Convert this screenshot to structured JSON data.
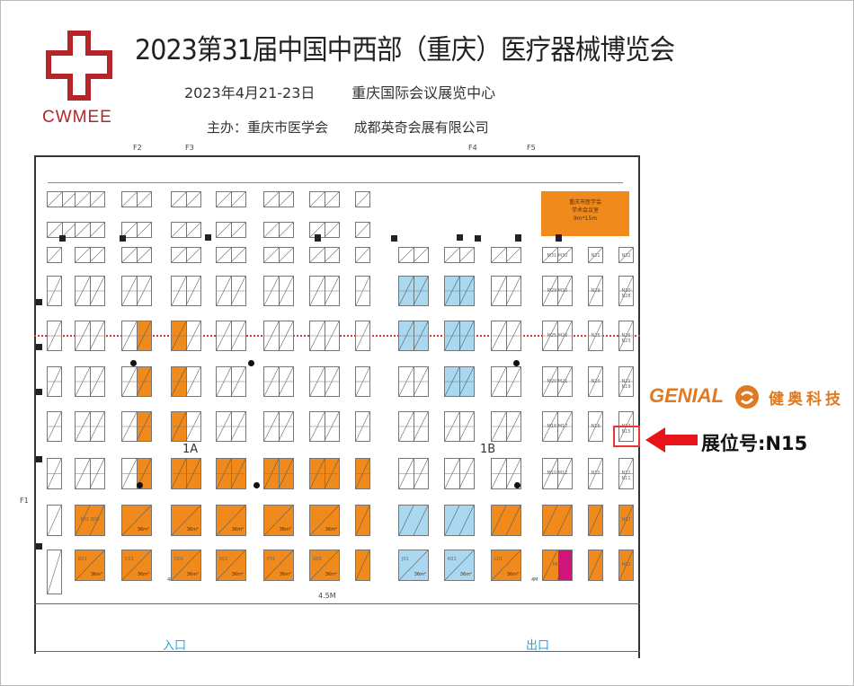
{
  "header": {
    "title": "2023第31届中国中西部（重庆）医疗器械博览会",
    "date_venue": "2023年4月21-23日        重庆国际会议展览中心",
    "hosts": "主办：重庆市医学会      成都英奇会展有限公司",
    "logo_text": "CWMEE",
    "logo_color": "#b5252a"
  },
  "floor_plan": {
    "entrances": [
      "F1",
      "F2",
      "F3",
      "F4",
      "F5"
    ],
    "halls": [
      "1A",
      "1B"
    ],
    "aisle_width": "4.5M",
    "side_aisle": "4M",
    "entry_label": "入口",
    "exit_label": "出口",
    "meeting_room": {
      "line1": "重庆市医学会",
      "line2": "学术会议室",
      "size": "9m*15m"
    },
    "colors": {
      "w": "#ffffff",
      "o": "#f08a1c",
      "b": "#a9d8f0",
      "p": "#d6127a"
    },
    "rows": [
      [
        "ww",
        "ww",
        "ww",
        "ww",
        "ww",
        "ww",
        "ww",
        "w",
        "--",
        "--",
        "--",
        "--",
        "-",
        "-"
      ],
      [
        "ww",
        "ww",
        "ww",
        "ww",
        "ww",
        "ww",
        "ww",
        "w",
        "--",
        "--",
        "--",
        "--",
        "-",
        "-"
      ],
      [
        "w",
        "ww",
        "ww",
        "ww",
        "ww",
        "ww",
        "ww",
        "w",
        "ww",
        "ww",
        "ww",
        "ww",
        "w",
        "w"
      ],
      [
        "w",
        "ww",
        "ww",
        "ww",
        "ww",
        "ww",
        "ww",
        "w",
        "bb",
        "bb",
        "ww",
        "ww",
        "w",
        "w"
      ],
      [
        "w",
        "ww",
        "wo",
        "ow",
        "ww",
        "ww",
        "ww",
        "w",
        "bb",
        "bb",
        "ww",
        "ww",
        "w",
        "w"
      ],
      [
        "w",
        "ww",
        "wo",
        "ow",
        "ww",
        "ww",
        "ww",
        "w",
        "ww",
        "bb",
        "ww",
        "ww",
        "w",
        "w"
      ],
      [
        "w",
        "ww",
        "wo",
        "ow",
        "ww",
        "ww",
        "ww",
        "w",
        "ww",
        "ww",
        "ww",
        "ww",
        "w",
        "w"
      ],
      [
        "w",
        "ww",
        "wo",
        "oo",
        "oo",
        "oo",
        "oo",
        "o",
        "ww",
        "ww",
        "ww",
        "ww",
        "w",
        "w"
      ],
      [
        "w",
        "oo",
        "oo",
        "oo",
        "oo",
        "oo",
        "oo",
        "o",
        "bb",
        "bb",
        "oo",
        "oo",
        "o",
        "o"
      ],
      [
        "w",
        "oo",
        "oo",
        "oo",
        "oo",
        "oo",
        "oo",
        "o",
        "bb",
        "bb",
        "oo",
        "op",
        "o",
        "o"
      ]
    ],
    "labels": {
      "2-11": "M31 M32",
      "2-12": "N31",
      "2-13": "N32",
      "3-11": "M29 M30",
      "3-12": "N29",
      "3-13": "N30 N28",
      "4-11": "M25 M26",
      "4-12": "N25",
      "4-13": "N26 N23",
      "5-11": "M20 M21",
      "5-12": "N20",
      "5-13": "N21 N19",
      "6-11": "M16 M17",
      "6-12": "N16",
      "6-13": "N17 N15",
      "7-11": "M10 M12",
      "7-12": "N10",
      "7-13": "N12 N11",
      "8-13": "N07",
      "9-13": "N02",
      "8-1": "B01 B06",
      "9-1": "B01",
      "9-2": "C01",
      "9-3": "D01",
      "9-4": "E01",
      "9-5": "F01",
      "9-6": "G01",
      "9-8": "J01",
      "9-9": "K01",
      "9-10": "L01",
      "9-11": "M01"
    },
    "big_booth_size": "36m²",
    "highlighted_booth": "N15"
  },
  "exhibitor": {
    "brand_en": "GENIAL",
    "brand_cn": "健奥科技",
    "brand_color": "#e07a20",
    "booth_label": "展位号:N15",
    "arrow_color": "#e8141b"
  }
}
